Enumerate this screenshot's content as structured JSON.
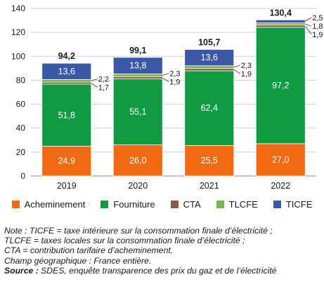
{
  "chart_data": {
    "type": "bar",
    "stacked": true,
    "categories": [
      "2019",
      "2020",
      "2021",
      "2022"
    ],
    "series": [
      {
        "name": "Acheminement",
        "color": "#f26a10",
        "values": [
          24.9,
          26.0,
          25.5,
          27.0
        ],
        "labels": [
          "24,9",
          "26,0",
          "25,5",
          "27,0"
        ]
      },
      {
        "name": "Fourniture",
        "color": "#119a44",
        "values": [
          51.8,
          55.1,
          62.4,
          97.2
        ],
        "labels": [
          "51,8",
          "55,1",
          "62,4",
          "97,2"
        ]
      },
      {
        "name": "CTA",
        "color": "#8a5a44",
        "values": [
          1.7,
          1.9,
          1.9,
          1.9
        ],
        "labels": [
          "1,7",
          "1,9",
          "1,9",
          "1,9"
        ]
      },
      {
        "name": "TLCFE",
        "color": "#7ab648",
        "values": [
          2.2,
          2.3,
          2.3,
          1.8
        ],
        "labels": [
          "2,2",
          "2,3",
          "2,3",
          "1,8"
        ]
      },
      {
        "name": "TICFE",
        "color": "#3a57a8",
        "values": [
          13.6,
          13.8,
          13.6,
          2.5
        ],
        "labels": [
          "13,6",
          "13,8",
          "13,6",
          "2,5"
        ]
      }
    ],
    "totals": [
      94.2,
      99.1,
      105.7,
      130.4
    ],
    "total_labels": [
      "94,2",
      "99,1",
      "105,7",
      "130,4"
    ],
    "ylim": [
      0,
      140
    ],
    "yticks": [
      0,
      20,
      40,
      60,
      80,
      100,
      120,
      140
    ],
    "grid": true,
    "legend_position": "bottom"
  },
  "notes": {
    "line1": "Note : TICFE = taxe intérieure sur la consommation finale d’électricité ;",
    "line2": "TLCFE = taxes locales sur la consommation finale d’électricité ;",
    "line3": "CTA = contribution tarifaire d’acheminement.",
    "line4": "Champ géographique : France entière.",
    "source_label": "Source :",
    "source_text": " SDES, enquête transparence des prix du gaz et de l’électricité"
  }
}
